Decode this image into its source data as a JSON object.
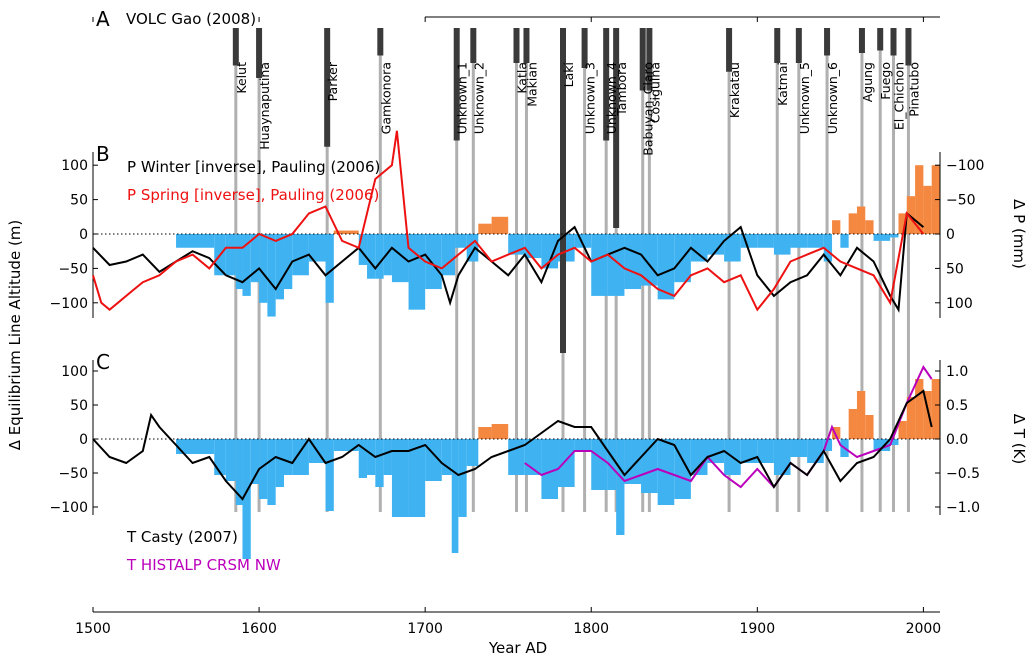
{
  "chart_data": {
    "type": "bar",
    "x_axis": {
      "label": "Year AD",
      "range": [
        1500,
        2010
      ],
      "ticks": [
        "1500",
        "1600",
        "1700",
        "1800",
        "1900",
        "2000"
      ]
    },
    "panel_a": {
      "letter": "A",
      "title": "VOLC Gao (2008)",
      "eruptions": [
        {
          "name": "Kelut",
          "year": 1586,
          "mag": 0.3
        },
        {
          "name": "Huaynaputina",
          "year": 1600,
          "mag": 0.4
        },
        {
          "name": "Parker",
          "year": 1641,
          "mag": 0.95
        },
        {
          "name": "Gamkonora",
          "year": 1673,
          "mag": 0.22
        },
        {
          "name": "Unknown_1",
          "year": 1719,
          "mag": 0.9
        },
        {
          "name": "Unknown_2",
          "year": 1729,
          "mag": 0.28
        },
        {
          "name": "Katla",
          "year": 1755,
          "mag": 0.28
        },
        {
          "name": "Makian",
          "year": 1761,
          "mag": 0.28
        },
        {
          "name": "Laki",
          "year": 1783,
          "mag": 2.6
        },
        {
          "name": "Unknown_3",
          "year": 1796,
          "mag": 0.32
        },
        {
          "name": "Unknown_4",
          "year": 1809,
          "mag": 0.9
        },
        {
          "name": "Tambora",
          "year": 1815,
          "mag": 1.6
        },
        {
          "name": "Babuyan_Claro",
          "year": 1831,
          "mag": 0.5
        },
        {
          "name": "Cosiguina",
          "year": 1835,
          "mag": 0.5
        },
        {
          "name": "Krakatau",
          "year": 1883,
          "mag": 0.35
        },
        {
          "name": "Katmai",
          "year": 1912,
          "mag": 0.28
        },
        {
          "name": "Unknown_5",
          "year": 1925,
          "mag": 0.28
        },
        {
          "name": "Unknown_6",
          "year": 1942,
          "mag": 0.22
        },
        {
          "name": "Agung",
          "year": 1963,
          "mag": 0.2
        },
        {
          "name": "Fuego",
          "year": 1974,
          "mag": 0.18
        },
        {
          "name": "El_Chichon",
          "year": 1982,
          "mag": 0.22
        },
        {
          "name": "Pinatubo",
          "year": 1991,
          "mag": 0.3
        }
      ]
    },
    "panel_b": {
      "letter": "B",
      "left_ylabel": "Δ Equilibrium Line Altitude (m)",
      "left_ticks": [
        "100",
        "50",
        "0",
        "−50",
        "−100"
      ],
      "right_ylabel": "Δ P (mm)",
      "right_ticks": [
        "−100",
        "−50",
        "0",
        "50",
        "100"
      ],
      "series": [
        {
          "name": "P Winter [inverse], Pauling (2006)",
          "color": "#000000",
          "x": [
            1500,
            1510,
            1520,
            1530,
            1540,
            1550,
            1560,
            1570,
            1580,
            1590,
            1600,
            1610,
            1620,
            1630,
            1640,
            1650,
            1660,
            1670,
            1680,
            1690,
            1700,
            1710,
            1715,
            1720,
            1730,
            1740,
            1750,
            1760,
            1770,
            1780,
            1790,
            1800,
            1810,
            1820,
            1830,
            1840,
            1850,
            1860,
            1870,
            1880,
            1890,
            1900,
            1910,
            1920,
            1930,
            1940,
            1950,
            1960,
            1970,
            1980,
            1985,
            1990,
            2000
          ],
          "y": [
            -20,
            -45,
            -40,
            -30,
            -55,
            -40,
            -25,
            -35,
            -60,
            -70,
            -50,
            -80,
            -40,
            -30,
            -60,
            -40,
            -20,
            -50,
            -20,
            -40,
            -30,
            -60,
            -100,
            -60,
            -20,
            -40,
            -60,
            -30,
            -70,
            -10,
            10,
            -40,
            -30,
            -20,
            -30,
            -60,
            -50,
            -20,
            -40,
            -10,
            10,
            -60,
            -90,
            -70,
            -60,
            -30,
            -60,
            -20,
            -40,
            -90,
            -110,
            30,
            10
          ]
        },
        {
          "name": "P Spring [inverse], Pauling (2006)",
          "color": "#ee1111",
          "x": [
            1500,
            1505,
            1510,
            1515,
            1520,
            1525,
            1530,
            1540,
            1550,
            1560,
            1570,
            1580,
            1590,
            1600,
            1610,
            1620,
            1630,
            1640,
            1650,
            1660,
            1670,
            1680,
            1683,
            1690,
            1700,
            1710,
            1720,
            1730,
            1740,
            1750,
            1760,
            1770,
            1780,
            1790,
            1800,
            1810,
            1820,
            1830,
            1840,
            1850,
            1860,
            1870,
            1880,
            1890,
            1900,
            1910,
            1920,
            1930,
            1940,
            1950,
            1960,
            1970,
            1980,
            1990,
            2000
          ],
          "y": [
            -60,
            -100,
            -110,
            -100,
            -90,
            -80,
            -70,
            -60,
            -40,
            -30,
            -50,
            -20,
            -20,
            0,
            -10,
            0,
            30,
            40,
            -10,
            -20,
            80,
            100,
            150,
            -20,
            -40,
            -50,
            -30,
            -10,
            -40,
            -30,
            -20,
            -50,
            -30,
            -20,
            -40,
            -30,
            -50,
            -60,
            -80,
            -90,
            -60,
            -50,
            -70,
            -60,
            -110,
            -80,
            -40,
            -30,
            -20,
            -40,
            -50,
            -60,
            -100,
            30,
            0
          ]
        }
      ],
      "bars": {
        "x": [
          1550,
          1573,
          1580,
          1586,
          1590,
          1595,
          1600,
          1605,
          1610,
          1615,
          1620,
          1630,
          1640,
          1645,
          1660,
          1665,
          1670,
          1675,
          1680,
          1690,
          1700,
          1710,
          1718,
          1725,
          1732,
          1740,
          1750,
          1760,
          1770,
          1780,
          1790,
          1800,
          1810,
          1820,
          1830,
          1840,
          1850,
          1860,
          1870,
          1880,
          1890,
          1900,
          1910,
          1920,
          1930,
          1940,
          1945,
          1950,
          1955,
          1960,
          1965,
          1970,
          1980,
          1985,
          1990,
          1995,
          2000,
          2005
        ],
        "y": [
          -20,
          -60,
          -60,
          -80,
          -90,
          -70,
          -100,
          -120,
          -95,
          -80,
          -60,
          -40,
          -100,
          5,
          -45,
          -65,
          -65,
          -60,
          -70,
          -110,
          -80,
          -60,
          -20,
          -40,
          15,
          25,
          -30,
          -35,
          -50,
          -40,
          -20,
          -90,
          -90,
          -80,
          -75,
          -95,
          -70,
          -40,
          -30,
          -40,
          -20,
          -20,
          -30,
          -20,
          -20,
          -40,
          20,
          -20,
          30,
          40,
          20,
          -10,
          -5,
          30,
          55,
          100,
          70,
          100
        ]
      }
    },
    "panel_c": {
      "letter": "C",
      "left_ticks": [
        "100",
        "50",
        "0",
        "−50",
        "−100"
      ],
      "right_ylabel": "Δ T (K)",
      "right_ticks": [
        "1.0",
        "0.5",
        "0.0",
        "−0.5",
        "−1.0"
      ],
      "series": [
        {
          "name": "T Casty (2007)",
          "color": "#000000",
          "x": [
            1500,
            1510,
            1520,
            1530,
            1535,
            1540,
            1550,
            1560,
            1570,
            1580,
            1590,
            1600,
            1610,
            1620,
            1630,
            1640,
            1650,
            1660,
            1670,
            1680,
            1690,
            1700,
            1710,
            1720,
            1730,
            1740,
            1750,
            1760,
            1770,
            1780,
            1790,
            1800,
            1810,
            1820,
            1830,
            1840,
            1850,
            1860,
            1870,
            1880,
            1890,
            1900,
            1910,
            1920,
            1930,
            1940,
            1950,
            1960,
            1970,
            1980,
            1990,
            2000,
            2005
          ],
          "y": [
            0,
            -30,
            -40,
            -20,
            40,
            20,
            -10,
            -40,
            -30,
            -70,
            -100,
            -50,
            -30,
            -40,
            0,
            -40,
            -30,
            -10,
            -30,
            -20,
            -20,
            -10,
            -40,
            -60,
            -50,
            -30,
            -20,
            -10,
            10,
            30,
            20,
            20,
            -20,
            -60,
            -30,
            0,
            -10,
            -60,
            -30,
            -20,
            -40,
            -30,
            -80,
            -40,
            -60,
            -20,
            -70,
            -40,
            -30,
            0,
            60,
            80,
            20
          ]
        },
        {
          "name": "T HISTALP CRSM NW",
          "color": "#bb00bb",
          "x": [
            1760,
            1770,
            1780,
            1790,
            1800,
            1810,
            1820,
            1830,
            1840,
            1850,
            1860,
            1870,
            1880,
            1890,
            1900,
            1910,
            1920,
            1930,
            1940,
            1945,
            1950,
            1960,
            1970,
            1980,
            1990,
            2000,
            2005
          ],
          "y": [
            -40,
            -60,
            -50,
            -20,
            -20,
            -40,
            -70,
            -60,
            -50,
            -60,
            -70,
            -30,
            -60,
            -80,
            -50,
            -80,
            -40,
            -60,
            -20,
            20,
            -10,
            -30,
            -20,
            -10,
            60,
            120,
            100
          ]
        }
      ],
      "bars": {
        "x": [
          1550,
          1573,
          1580,
          1586,
          1590,
          1595,
          1600,
          1605,
          1610,
          1615,
          1620,
          1630,
          1640,
          1645,
          1660,
          1665,
          1670,
          1675,
          1680,
          1690,
          1700,
          1710,
          1716,
          1720,
          1725,
          1732,
          1740,
          1750,
          1760,
          1770,
          1780,
          1790,
          1800,
          1810,
          1815,
          1820,
          1830,
          1840,
          1850,
          1860,
          1870,
          1880,
          1890,
          1900,
          1910,
          1920,
          1930,
          1940,
          1945,
          1950,
          1955,
          1960,
          1965,
          1970,
          1980,
          1985,
          1990,
          1995,
          2000,
          2005
        ],
        "y": [
          -25,
          -60,
          -70,
          -110,
          -200,
          -75,
          -100,
          -110,
          -80,
          -60,
          -60,
          -40,
          -120,
          -20,
          -65,
          -60,
          -80,
          -60,
          -130,
          -130,
          -70,
          -60,
          -190,
          -130,
          -45,
          20,
          25,
          -60,
          -60,
          -100,
          -80,
          -20,
          -85,
          -85,
          -160,
          -75,
          -90,
          -110,
          -100,
          -60,
          -40,
          -60,
          -40,
          -40,
          -60,
          -30,
          -40,
          -20,
          20,
          -30,
          50,
          80,
          40,
          -20,
          -10,
          30,
          70,
          100,
          80,
          100
        ]
      },
      "legend": [
        "T Casty (2007)",
        "T HISTALP CRSM NW"
      ]
    },
    "colors": {
      "blue_bars": "#3fb3f2",
      "orange_bars": "#f58840",
      "volc": "#3a3a3a",
      "volc_line": "#b0b0b0"
    }
  }
}
